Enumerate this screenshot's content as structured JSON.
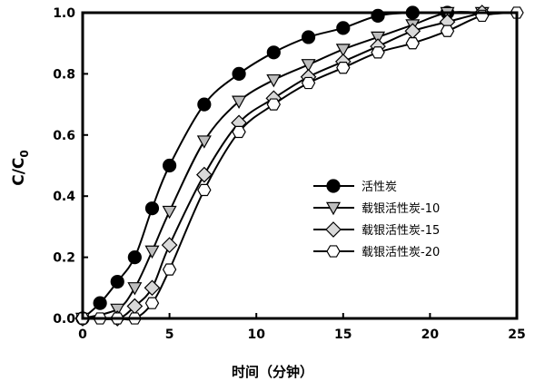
{
  "chart_data": {
    "type": "line",
    "xlabel": "时间（分钟）",
    "ylabel_main": "C/C",
    "ylabel_sub": "0",
    "xlim": [
      0,
      25
    ],
    "ylim": [
      0,
      1.0
    ],
    "xticks": [
      "0",
      "5",
      "10",
      "15",
      "20",
      "25"
    ],
    "yticks": [
      "0.0",
      "0.2",
      "0.4",
      "0.6",
      "0.8",
      "1.0"
    ],
    "grid": false,
    "legend_position": "center-right",
    "series": [
      {
        "name": "活性炭",
        "marker": "circle",
        "fill": "#000000",
        "x": [
          0,
          1,
          2,
          3,
          4,
          5,
          7,
          9,
          11,
          13,
          15,
          17,
          19,
          21
        ],
        "y": [
          0,
          0.05,
          0.12,
          0.2,
          0.36,
          0.5,
          0.7,
          0.8,
          0.87,
          0.92,
          0.95,
          0.99,
          1.0,
          1.0
        ]
      },
      {
        "name": "载银活性炭-10",
        "marker": "triangle-down",
        "fill": "#bdbdbd",
        "x": [
          0,
          2,
          3,
          4,
          5,
          7,
          9,
          11,
          13,
          15,
          17,
          19,
          21,
          23
        ],
        "y": [
          0,
          0.03,
          0.1,
          0.22,
          0.35,
          0.58,
          0.71,
          0.78,
          0.83,
          0.88,
          0.92,
          0.96,
          1.0,
          1.0
        ]
      },
      {
        "name": "载银活性炭-15",
        "marker": "diamond",
        "fill": "#d9d9d9",
        "x": [
          0,
          2,
          3,
          4,
          5,
          7,
          9,
          11,
          13,
          15,
          17,
          19,
          21,
          23
        ],
        "y": [
          0,
          0,
          0.04,
          0.1,
          0.24,
          0.47,
          0.64,
          0.72,
          0.79,
          0.84,
          0.89,
          0.94,
          0.97,
          1.0
        ]
      },
      {
        "name": "载银活性炭-20",
        "marker": "hexagon",
        "fill": "#ffffff",
        "x": [
          0,
          1,
          2,
          3,
          4,
          5,
          7,
          9,
          11,
          13,
          15,
          17,
          19,
          21,
          23,
          25
        ],
        "y": [
          0,
          0,
          0,
          0,
          0.05,
          0.16,
          0.42,
          0.61,
          0.7,
          0.77,
          0.82,
          0.87,
          0.9,
          0.94,
          0.99,
          1.0
        ]
      }
    ]
  }
}
